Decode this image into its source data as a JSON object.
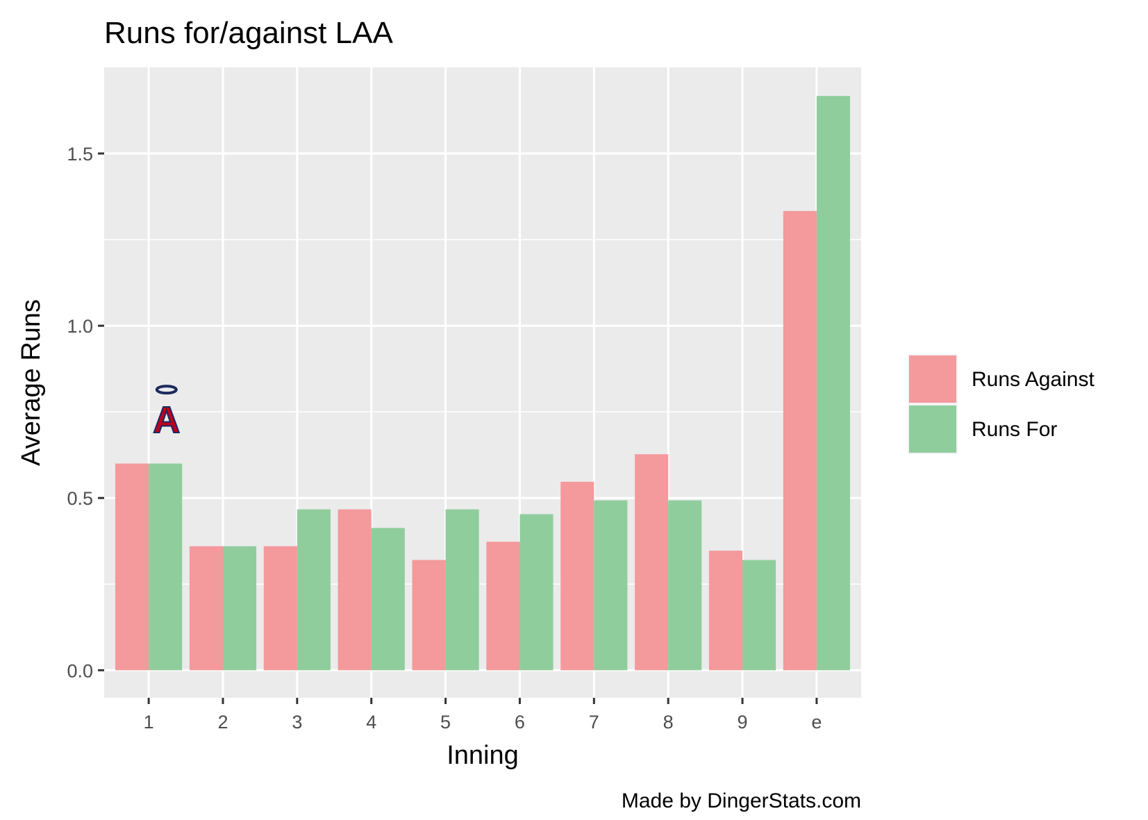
{
  "chart_data": {
    "type": "bar",
    "title": "Runs for/against LAA",
    "xlabel": "Inning",
    "ylabel": "Average Runs",
    "categories": [
      "1",
      "2",
      "3",
      "4",
      "5",
      "6",
      "7",
      "8",
      "9",
      "e"
    ],
    "series": [
      {
        "name": "Runs Against",
        "color": "#f4999c",
        "values": [
          0.6,
          0.36,
          0.36,
          0.467,
          0.32,
          0.373,
          0.547,
          0.627,
          0.347,
          1.333
        ]
      },
      {
        "name": "Runs For",
        "color": "#90cd9d",
        "values": [
          0.6,
          0.36,
          0.467,
          0.413,
          0.467,
          0.453,
          0.493,
          0.493,
          0.32,
          1.667
        ]
      }
    ],
    "ylim": [
      -0.08,
      1.75
    ],
    "yticks": [
      0.0,
      0.5,
      1.0,
      1.5
    ],
    "ytick_labels": [
      "0.0",
      "0.5",
      "1.0",
      "1.5"
    ],
    "grid": true,
    "panel_color": "#ebebeb",
    "legend_position": "right",
    "caption": "Made by DingerStats.com",
    "logo": {
      "name": "angels-logo",
      "text": "A",
      "x_category": "1",
      "y": 0.75
    }
  }
}
